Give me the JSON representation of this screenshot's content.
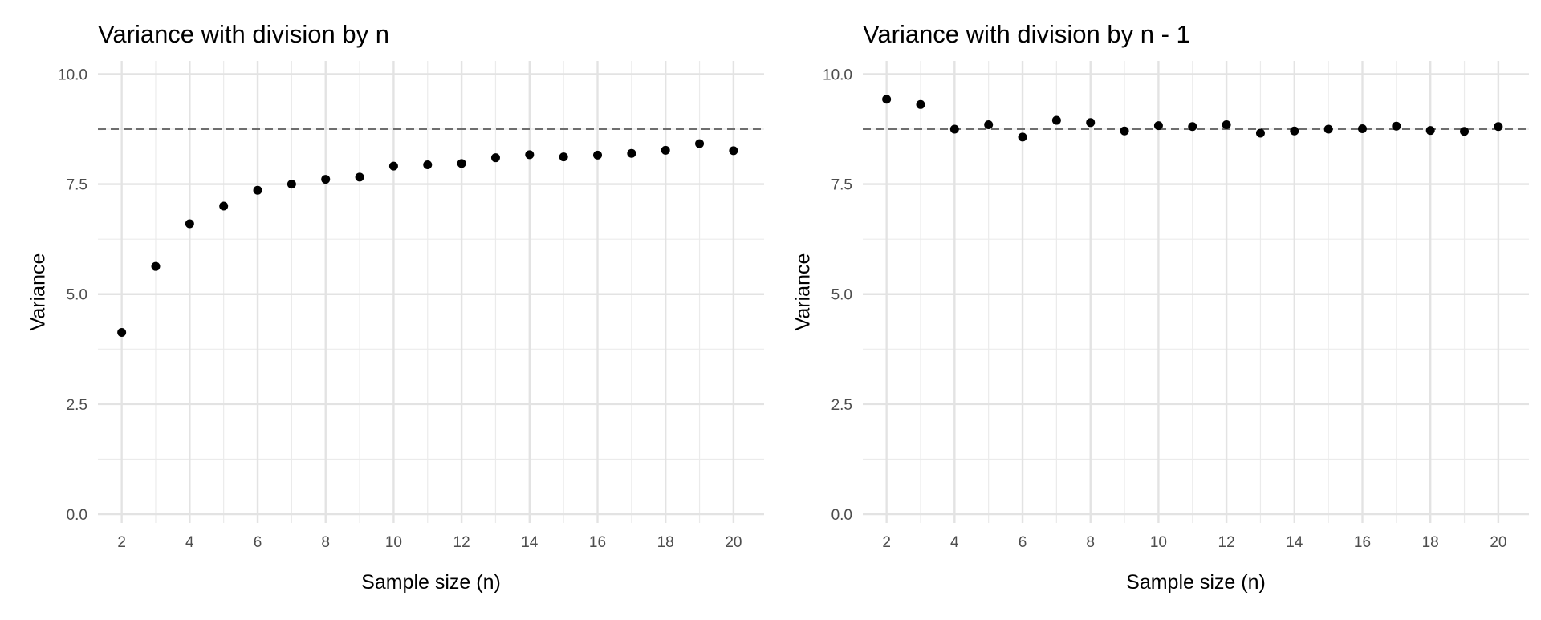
{
  "chart_data": [
    {
      "type": "scatter",
      "title": "Variance with division by n",
      "xlabel": "Sample size (n)",
      "ylabel": "Variance",
      "x": [
        2,
        3,
        4,
        5,
        6,
        7,
        8,
        9,
        10,
        11,
        12,
        13,
        14,
        15,
        16,
        17,
        18,
        19,
        20
      ],
      "y": [
        4.13,
        5.63,
        6.6,
        7.0,
        7.36,
        7.5,
        7.61,
        7.66,
        7.91,
        7.94,
        7.97,
        8.1,
        8.17,
        8.12,
        8.16,
        8.2,
        8.27,
        8.42,
        8.26
      ],
      "xlim": [
        1.3,
        20.9
      ],
      "ylim": [
        -0.2,
        10.3
      ],
      "x_ticks": [
        2,
        4,
        6,
        8,
        10,
        12,
        14,
        16,
        18,
        20
      ],
      "x_tick_labels": [
        "2",
        "4",
        "6",
        "8",
        "10",
        "12",
        "14",
        "16",
        "18",
        "20"
      ],
      "y_ticks": [
        0,
        2.5,
        5,
        7.5,
        10
      ],
      "y_tick_labels": [
        "0.0",
        "2.5",
        "5.0",
        "7.5",
        "10.0"
      ],
      "reference_line": 8.75,
      "grid": true
    },
    {
      "type": "scatter",
      "title": "Variance with division by n - 1",
      "xlabel": "Sample size (n)",
      "ylabel": "Variance",
      "x": [
        2,
        3,
        4,
        5,
        6,
        7,
        8,
        9,
        10,
        11,
        12,
        13,
        14,
        15,
        16,
        17,
        18,
        19,
        20
      ],
      "y": [
        9.43,
        9.31,
        8.75,
        8.85,
        8.57,
        8.95,
        8.9,
        8.71,
        8.83,
        8.81,
        8.85,
        8.66,
        8.71,
        8.75,
        8.76,
        8.82,
        8.72,
        8.7,
        8.81
      ],
      "xlim": [
        1.3,
        20.9
      ],
      "ylim": [
        -0.2,
        10.3
      ],
      "x_ticks": [
        2,
        4,
        6,
        8,
        10,
        12,
        14,
        16,
        18,
        20
      ],
      "x_tick_labels": [
        "2",
        "4",
        "6",
        "8",
        "10",
        "12",
        "14",
        "16",
        "18",
        "20"
      ],
      "y_ticks": [
        0,
        2.5,
        5,
        7.5,
        10
      ],
      "y_tick_labels": [
        "0.0",
        "2.5",
        "5.0",
        "7.5",
        "10.0"
      ],
      "reference_line": 8.75,
      "grid": true
    }
  ]
}
